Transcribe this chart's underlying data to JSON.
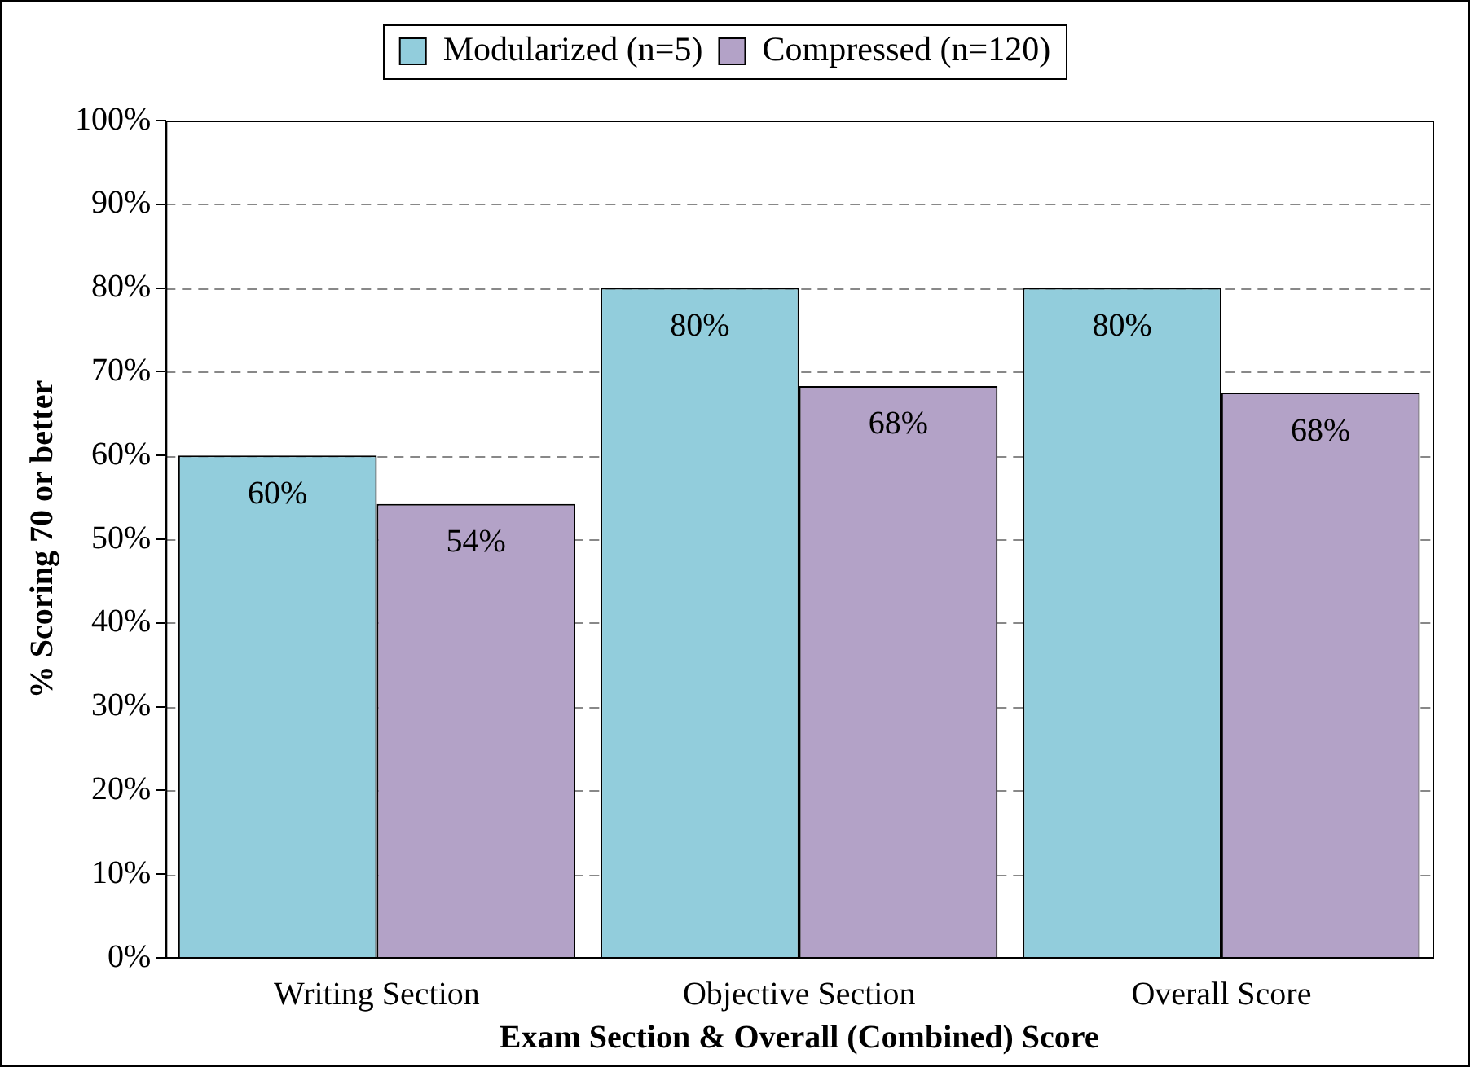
{
  "chart_data": {
    "type": "bar",
    "xlabel": "Exam Section & Overall (Combined) Score",
    "ylabel": "% Scoring 70 or better",
    "categories": [
      "Writing Section",
      "Objective Section",
      "Overall Score"
    ],
    "series": [
      {
        "name": "Modularized (n=5)",
        "color": "#92cddc",
        "values": [
          60,
          80,
          80
        ],
        "value_labels": [
          "60%",
          "80%",
          "80%"
        ]
      },
      {
        "name": "Compressed (n=120)",
        "color": "#b3a2c7",
        "values": [
          54.2,
          68.3,
          67.5
        ],
        "value_labels": [
          "54%",
          "68%",
          "68%"
        ]
      }
    ],
    "ylim": [
      0,
      100
    ],
    "yticks": [
      {
        "value": 0,
        "label": "0%"
      },
      {
        "value": 10,
        "label": "10%"
      },
      {
        "value": 20,
        "label": "20%"
      },
      {
        "value": 30,
        "label": "30%"
      },
      {
        "value": 40,
        "label": "40%"
      },
      {
        "value": 50,
        "label": "50%"
      },
      {
        "value": 60,
        "label": "60%"
      },
      {
        "value": 70,
        "label": "70%"
      },
      {
        "value": 80,
        "label": "80%"
      },
      {
        "value": 90,
        "label": "90%"
      },
      {
        "value": 100,
        "label": "100%"
      }
    ],
    "grid": "y",
    "legend": "top"
  }
}
